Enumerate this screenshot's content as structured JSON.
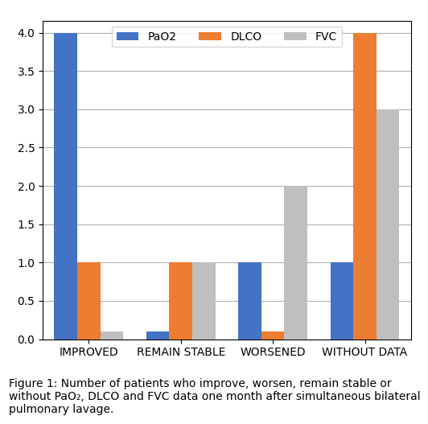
{
  "chart_data": {
    "type": "bar",
    "categories": [
      "IMPROVED",
      "REMAIN STABLE",
      "WORSENED",
      "WITHOUT DATA"
    ],
    "series": [
      {
        "name": "PaO2",
        "color": "#4472C4",
        "values": [
          4,
          0.1,
          1,
          1
        ]
      },
      {
        "name": "DLCO",
        "color": "#ED7D31",
        "values": [
          1,
          1,
          0.1,
          4
        ]
      },
      {
        "name": "FVC",
        "color": "#BFBFBF",
        "values": [
          0.1,
          1,
          2,
          3
        ]
      }
    ],
    "ylim": [
      0,
      4.15
    ],
    "yticks": [
      {
        "value": 0,
        "label": "0.0"
      },
      0.5,
      {
        "value": 1,
        "label": "1.0"
      },
      1.5,
      {
        "value": 2,
        "label": "2.0"
      },
      2.5,
      {
        "value": 3,
        "label": "3.0"
      },
      3.5,
      {
        "value": 4,
        "label": "4.0"
      }
    ],
    "grid": true,
    "legend": "upper center",
    "annotations": [
      "Figure 1: Number of patients who improve, worsen, remain stable or without PaO₂, DLCO and FVC data one month after simultaneous bilateral pulmonary lavage."
    ]
  }
}
